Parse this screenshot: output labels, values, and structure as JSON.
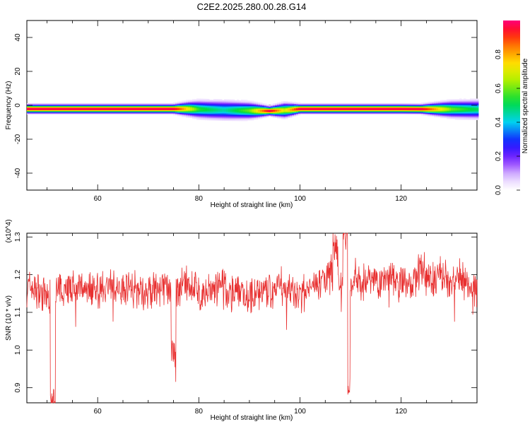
{
  "title": "C2E2.2025.280.00.28.G14",
  "colorbar": {
    "label": "Normalized spectral amplitude",
    "ticks": [
      "0.0",
      "0.2",
      "0.4",
      "0.6",
      "0.8"
    ]
  },
  "chart_data": [
    {
      "type": "heatmap",
      "xlabel": "Height of straight line (km)",
      "ylabel": "Frequency (Hz)",
      "xlim": [
        46,
        135
      ],
      "ylim": [
        -50,
        50
      ],
      "xticks": [
        60,
        80,
        100,
        120
      ],
      "yticks": [
        40,
        20,
        0,
        -20,
        -40
      ],
      "xtick_labels": [
        "60",
        "80",
        "100",
        "120"
      ],
      "ytick_labels": [
        "40",
        "20",
        "0",
        "-20",
        "-40"
      ],
      "zlabel": "Normalized spectral amplitude",
      "zlim": [
        0,
        1
      ],
      "band_center_hz": [
        {
          "x": 46,
          "f": -2
        },
        {
          "x": 78,
          "f": -2
        },
        {
          "x": 82,
          "f": -2.5
        },
        {
          "x": 86,
          "f": -2.8
        },
        {
          "x": 90,
          "f": -3
        },
        {
          "x": 94,
          "f": -3.2
        },
        {
          "x": 97,
          "f": -2.8
        },
        {
          "x": 100,
          "f": -2
        },
        {
          "x": 120,
          "f": -2
        },
        {
          "x": 130,
          "f": -2.2
        },
        {
          "x": 135,
          "f": -2.3
        }
      ],
      "peak_amplitude": [
        {
          "x": 46,
          "a": 1.0
        },
        {
          "x": 75,
          "a": 1.0
        },
        {
          "x": 80,
          "a": 0.55
        },
        {
          "x": 85,
          "a": 0.45
        },
        {
          "x": 90,
          "a": 0.6
        },
        {
          "x": 94,
          "a": 1.0
        },
        {
          "x": 97,
          "a": 0.7
        },
        {
          "x": 100,
          "a": 1.0
        },
        {
          "x": 124,
          "a": 1.0
        },
        {
          "x": 130,
          "a": 0.6
        },
        {
          "x": 135,
          "a": 0.5
        }
      ]
    },
    {
      "type": "line",
      "xlabel": "Height of straight line (km)",
      "ylabel": "SNR (10 * v/v)",
      "y_multiplier": "(x10^4)",
      "xlim": [
        46,
        135
      ],
      "ylim": [
        0.86,
        1.31
      ],
      "xticks": [
        60,
        80,
        100,
        120
      ],
      "yticks": [
        0.9,
        1.0,
        1.1,
        1.2,
        1.3
      ],
      "xtick_labels": [
        "60",
        "80",
        "100",
        "120"
      ],
      "ytick_labels": [
        "0.9",
        "1.0",
        "1.1",
        "1.2",
        "1.3"
      ],
      "series": [
        {
          "color": "#e83030",
          "x": [
            46,
            48,
            50,
            51.3,
            52,
            54,
            56,
            58,
            60,
            62,
            64,
            66,
            68,
            70,
            72,
            74,
            75,
            76,
            78,
            80,
            82,
            84,
            86,
            88,
            90,
            92,
            94,
            96,
            98,
            100,
            102,
            104,
            106,
            107,
            108,
            109,
            109.8,
            110,
            111,
            112,
            114,
            116,
            118,
            120,
            122,
            124,
            126,
            128,
            130,
            132,
            134,
            135
          ],
          "y": [
            1.17,
            1.16,
            1.14,
            0.86,
            1.15,
            1.17,
            1.16,
            1.17,
            1.16,
            1.17,
            1.16,
            1.17,
            1.16,
            1.15,
            1.16,
            1.17,
            1.0,
            1.16,
            1.17,
            1.16,
            1.15,
            1.17,
            1.15,
            1.16,
            1.14,
            1.16,
            1.15,
            1.17,
            1.16,
            1.14,
            1.17,
            1.18,
            1.2,
            1.28,
            1.18,
            1.31,
            0.91,
            1.17,
            1.19,
            1.18,
            1.19,
            1.18,
            1.2,
            1.18,
            1.17,
            1.21,
            1.19,
            1.2,
            1.18,
            1.19,
            1.17,
            1.16
          ],
          "noise_amplitude": 0.05
        }
      ]
    }
  ]
}
